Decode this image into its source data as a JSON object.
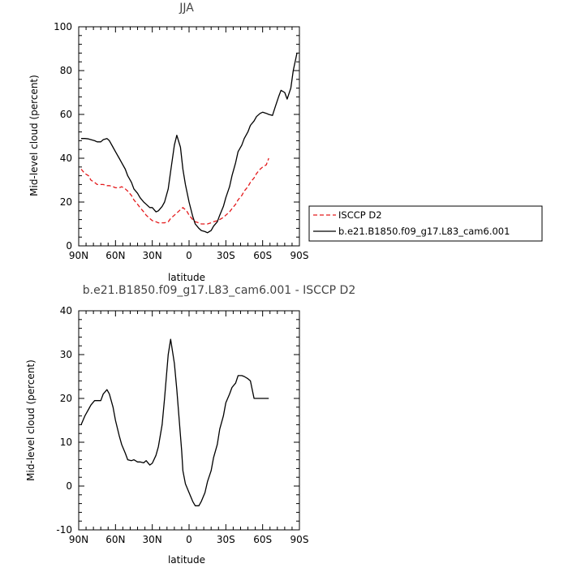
{
  "chart_data": [
    {
      "type": "line",
      "title": "JJA",
      "xlabel": "latitude",
      "ylabel": "Mid-level cloud (percent)",
      "xlim": [
        -90,
        90
      ],
      "ylim": [
        0,
        100
      ],
      "xticks": [
        {
          "v": -90,
          "label": "90N"
        },
        {
          "v": -60,
          "label": "60N"
        },
        {
          "v": -30,
          "label": "30N"
        },
        {
          "v": 0,
          "label": "0"
        },
        {
          "v": 30,
          "label": "30S"
        },
        {
          "v": 60,
          "label": "60S"
        },
        {
          "v": 90,
          "label": "90S"
        }
      ],
      "yticks": [
        {
          "v": 0,
          "label": "0"
        },
        {
          "v": 20,
          "label": "20"
        },
        {
          "v": 40,
          "label": "40"
        },
        {
          "v": 60,
          "label": "60"
        },
        {
          "v": 80,
          "label": "80"
        },
        {
          "v": 100,
          "label": "100"
        }
      ],
      "legend_position": "right",
      "series": [
        {
          "name": "ISCCP D2",
          "color": "#e41a1c",
          "dash": "dashed",
          "x": [
            -88,
            -85,
            -82,
            -80,
            -77,
            -75,
            -72,
            -70,
            -67,
            -65,
            -62,
            -60,
            -57,
            -55,
            -52,
            -50,
            -47,
            -45,
            -42,
            -40,
            -37,
            -35,
            -32,
            -30,
            -27,
            -25,
            -22,
            -20,
            -17,
            -15,
            -12,
            -10,
            -7,
            -5,
            -2,
            0,
            3,
            5,
            8,
            10,
            13,
            15,
            18,
            20,
            23,
            25,
            28,
            30,
            33,
            35,
            38,
            40,
            43,
            45,
            48,
            50,
            53,
            55,
            58,
            60,
            63,
            65
          ],
          "y": [
            35,
            33,
            32,
            30,
            29,
            28,
            28,
            28,
            27.5,
            27.5,
            27,
            26.5,
            26.5,
            27,
            26,
            25,
            23,
            21,
            19,
            17.5,
            15.5,
            14,
            12.5,
            11.5,
            11,
            10.5,
            10.5,
            10.5,
            11,
            12.5,
            14,
            15,
            16.5,
            17.5,
            16,
            14,
            12,
            11,
            10.5,
            10,
            10,
            10,
            10.5,
            11,
            11.5,
            12,
            13,
            14,
            15.5,
            17,
            19,
            21,
            23,
            25,
            27,
            29,
            31,
            33,
            35,
            36,
            37,
            40
          ]
        },
        {
          "name": "b.e21.B1850.f09_g17.L83_cam6.001",
          "color": "#000000",
          "dash": "solid",
          "x": [
            -88,
            -85,
            -82,
            -80,
            -77,
            -75,
            -72,
            -70,
            -67,
            -65,
            -62,
            -60,
            -57,
            -55,
            -52,
            -50,
            -47,
            -45,
            -42,
            -40,
            -37,
            -35,
            -32,
            -30,
            -27,
            -25,
            -22,
            -20,
            -17,
            -15,
            -12,
            -10,
            -7,
            -5,
            -3,
            0,
            3,
            5,
            8,
            10,
            13,
            15,
            18,
            20,
            23,
            25,
            28,
            30,
            33,
            35,
            38,
            40,
            43,
            45,
            48,
            50,
            53,
            55,
            58,
            60,
            63,
            65,
            68,
            70,
            73,
            75,
            78,
            80,
            83,
            85,
            88
          ],
          "y": [
            49,
            49,
            48.8,
            48.5,
            48,
            47.5,
            47.5,
            48.5,
            49,
            48,
            45,
            43,
            40,
            38,
            35,
            32,
            29,
            26,
            24,
            22,
            20,
            19,
            17.5,
            17.5,
            15.5,
            16,
            18,
            20,
            26,
            34,
            46,
            50.5,
            45,
            35,
            28,
            20,
            13.5,
            10,
            8,
            7,
            6.5,
            6,
            7,
            9,
            11,
            14,
            18,
            22,
            27,
            32,
            38,
            43,
            46,
            49,
            52,
            55,
            57,
            59,
            60.5,
            61,
            60.5,
            60,
            59.5,
            63,
            68,
            71,
            70,
            67,
            72,
            80,
            88
          ]
        }
      ]
    },
    {
      "type": "line",
      "title": "b.e21.B1850.f09_g17.L83_cam6.001 - ISCCP D2",
      "xlabel": "latitude",
      "ylabel": "Mid-level cloud (percent)",
      "xlim": [
        -90,
        90
      ],
      "ylim": [
        -10,
        40
      ],
      "xticks": [
        {
          "v": -90,
          "label": "90N"
        },
        {
          "v": -60,
          "label": "60N"
        },
        {
          "v": -30,
          "label": "30N"
        },
        {
          "v": 0,
          "label": "0"
        },
        {
          "v": 30,
          "label": "30S"
        },
        {
          "v": 60,
          "label": "60S"
        },
        {
          "v": 90,
          "label": "90S"
        }
      ],
      "yticks": [
        {
          "v": -10,
          "label": "-10"
        },
        {
          "v": 0,
          "label": "0"
        },
        {
          "v": 10,
          "label": "10"
        },
        {
          "v": 20,
          "label": "20"
        },
        {
          "v": 30,
          "label": "30"
        },
        {
          "v": 40,
          "label": "40"
        }
      ],
      "series": [
        {
          "color": "#000000",
          "dash": "solid",
          "x": [
            -88,
            -85,
            -82,
            -80,
            -77,
            -75,
            -72,
            -70,
            -67,
            -65,
            -62,
            -60,
            -57,
            -55,
            -52,
            -50,
            -47,
            -45,
            -42,
            -40,
            -37,
            -35,
            -32,
            -30,
            -27,
            -25,
            -22,
            -20,
            -17,
            -15,
            -12,
            -10,
            -8,
            -6,
            -5,
            -3,
            0,
            3,
            5,
            8,
            10,
            13,
            15,
            18,
            20,
            23,
            25,
            28,
            30,
            33,
            35,
            38,
            40,
            43,
            45,
            48,
            50,
            53,
            55,
            58,
            60,
            63,
            65
          ],
          "y": [
            14,
            16,
            17.5,
            18.5,
            19.5,
            19.5,
            19.5,
            21,
            22,
            21,
            18,
            15,
            11.5,
            9.5,
            7.5,
            6,
            5.8,
            6,
            5.5,
            5.5,
            5.3,
            5.8,
            4.8,
            5.2,
            7,
            9,
            14,
            20,
            30,
            33.5,
            28,
            22,
            15,
            8,
            3.5,
            0.5,
            -1.5,
            -3.5,
            -4.5,
            -4.5,
            -3.5,
            -1.5,
            1,
            3.5,
            6.5,
            9.5,
            13,
            16,
            19,
            21,
            22.5,
            23.5,
            25.2,
            25.2,
            25,
            24.5,
            24,
            20,
            20,
            20,
            20,
            20,
            20
          ]
        }
      ]
    }
  ]
}
